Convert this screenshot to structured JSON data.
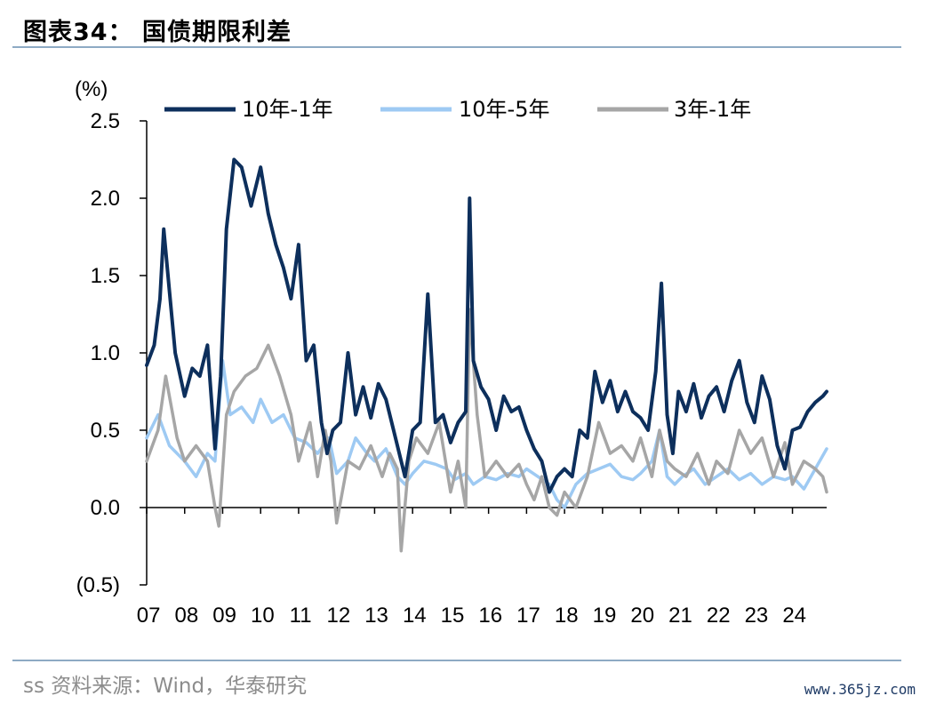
{
  "header": {
    "title": "图表34：  国债期限利差"
  },
  "footer": {
    "source": "ss 资料来源：Wind，华泰研究",
    "watermark": "www.365jz.com"
  },
  "chart_data": {
    "type": "line",
    "title": "",
    "ylabel": "(%)",
    "xlabel": "",
    "ylim": [
      -0.5,
      2.5
    ],
    "xlim": [
      2007.0,
      2024.9
    ],
    "y_ticks": [
      2.5,
      2.0,
      1.5,
      1.0,
      0.5,
      0.0,
      -0.5
    ],
    "y_tick_labels": [
      "2.5",
      "2.0",
      "1.5",
      "1.0",
      "0.5",
      "0.0",
      "(0.5)"
    ],
    "x_tick_labels": [
      "07",
      "08",
      "09",
      "10",
      "11",
      "12",
      "13",
      "14",
      "15",
      "16",
      "17",
      "18",
      "19",
      "20",
      "21",
      "22",
      "23",
      "24"
    ],
    "legend_position": "top",
    "grid": false,
    "series": [
      {
        "name": "10年-1年",
        "color": "#0d2f5c",
        "x": [
          2007.0,
          2007.2,
          2007.35,
          2007.45,
          2007.6,
          2007.75,
          2008.0,
          2008.2,
          2008.4,
          2008.6,
          2008.8,
          2008.95,
          2009.1,
          2009.3,
          2009.5,
          2009.75,
          2010.0,
          2010.2,
          2010.4,
          2010.6,
          2010.8,
          2011.0,
          2011.2,
          2011.4,
          2011.6,
          2011.75,
          2011.9,
          2012.1,
          2012.3,
          2012.5,
          2012.7,
          2012.9,
          2013.1,
          2013.3,
          2013.5,
          2013.65,
          2013.8,
          2014.0,
          2014.2,
          2014.4,
          2014.6,
          2014.8,
          2015.0,
          2015.2,
          2015.4,
          2015.5,
          2015.6,
          2015.8,
          2016.0,
          2016.2,
          2016.4,
          2016.6,
          2016.8,
          2017.0,
          2017.2,
          2017.4,
          2017.6,
          2017.8,
          2018.0,
          2018.2,
          2018.4,
          2018.6,
          2018.8,
          2019.0,
          2019.2,
          2019.4,
          2019.6,
          2019.8,
          2020.0,
          2020.2,
          2020.4,
          2020.55,
          2020.7,
          2020.85,
          2021.0,
          2021.2,
          2021.4,
          2021.6,
          2021.8,
          2022.0,
          2022.2,
          2022.4,
          2022.6,
          2022.8,
          2023.0,
          2023.2,
          2023.4,
          2023.6,
          2023.8,
          2024.0,
          2024.2,
          2024.4,
          2024.6,
          2024.8,
          2024.9
        ],
        "values": [
          0.92,
          1.05,
          1.35,
          1.8,
          1.4,
          1.0,
          0.72,
          0.9,
          0.85,
          1.05,
          0.38,
          0.85,
          1.8,
          2.25,
          2.2,
          1.95,
          2.2,
          1.9,
          1.7,
          1.55,
          1.35,
          1.7,
          0.95,
          1.05,
          0.55,
          0.35,
          0.5,
          0.55,
          1.0,
          0.6,
          0.78,
          0.58,
          0.8,
          0.7,
          0.5,
          0.35,
          0.2,
          0.5,
          0.55,
          1.38,
          0.55,
          0.6,
          0.42,
          0.55,
          0.62,
          2.0,
          0.95,
          0.78,
          0.7,
          0.5,
          0.72,
          0.62,
          0.65,
          0.5,
          0.38,
          0.3,
          0.1,
          0.2,
          0.25,
          0.2,
          0.5,
          0.45,
          0.88,
          0.68,
          0.82,
          0.62,
          0.75,
          0.62,
          0.58,
          0.5,
          0.88,
          1.45,
          0.6,
          0.35,
          0.75,
          0.62,
          0.8,
          0.58,
          0.72,
          0.78,
          0.62,
          0.82,
          0.95,
          0.68,
          0.55,
          0.85,
          0.7,
          0.4,
          0.25,
          0.5,
          0.52,
          0.62,
          0.68,
          0.72,
          0.75
        ]
      },
      {
        "name": "10年-5年",
        "color": "#9ecaf3",
        "x": [
          2007.0,
          2007.3,
          2007.6,
          2008.0,
          2008.3,
          2008.6,
          2008.8,
          2009.0,
          2009.2,
          2009.5,
          2009.8,
          2010.0,
          2010.3,
          2010.6,
          2010.9,
          2011.2,
          2011.5,
          2011.8,
          2012.0,
          2012.3,
          2012.5,
          2012.8,
          2013.0,
          2013.3,
          2013.6,
          2013.8,
          2014.0,
          2014.3,
          2014.6,
          2014.9,
          2015.1,
          2015.4,
          2015.6,
          2015.9,
          2016.2,
          2016.5,
          2016.8,
          2017.0,
          2017.3,
          2017.6,
          2017.8,
          2018.0,
          2018.3,
          2018.6,
          2018.9,
          2019.2,
          2019.5,
          2019.8,
          2020.0,
          2020.3,
          2020.5,
          2020.7,
          2020.9,
          2021.1,
          2021.4,
          2021.7,
          2022.0,
          2022.3,
          2022.6,
          2022.9,
          2023.2,
          2023.5,
          2023.8,
          2024.0,
          2024.3,
          2024.6,
          2024.9
        ],
        "values": [
          0.45,
          0.6,
          0.4,
          0.3,
          0.2,
          0.35,
          0.3,
          0.95,
          0.6,
          0.65,
          0.55,
          0.7,
          0.55,
          0.6,
          0.45,
          0.42,
          0.35,
          0.45,
          0.22,
          0.3,
          0.45,
          0.35,
          0.3,
          0.38,
          0.2,
          0.15,
          0.22,
          0.3,
          0.28,
          0.25,
          0.18,
          0.22,
          0.15,
          0.2,
          0.18,
          0.22,
          0.2,
          0.25,
          0.2,
          0.15,
          0.05,
          0.0,
          0.15,
          0.22,
          0.25,
          0.28,
          0.2,
          0.18,
          0.22,
          0.3,
          0.5,
          0.2,
          0.15,
          0.2,
          0.25,
          0.15,
          0.2,
          0.25,
          0.18,
          0.22,
          0.15,
          0.2,
          0.18,
          0.2,
          0.12,
          0.25,
          0.38
        ]
      },
      {
        "name": "3年-1年",
        "color": "#a6a6a6",
        "x": [
          2007.0,
          2007.3,
          2007.5,
          2007.8,
          2008.0,
          2008.3,
          2008.6,
          2008.8,
          2008.9,
          2009.1,
          2009.3,
          2009.6,
          2009.9,
          2010.2,
          2010.5,
          2010.8,
          2011.0,
          2011.3,
          2011.5,
          2011.7,
          2011.85,
          2012.0,
          2012.3,
          2012.6,
          2012.9,
          2013.2,
          2013.4,
          2013.6,
          2013.7,
          2013.9,
          2014.1,
          2014.4,
          2014.7,
          2015.0,
          2015.2,
          2015.4,
          2015.5,
          2015.7,
          2015.9,
          2016.2,
          2016.5,
          2016.8,
          2017.0,
          2017.2,
          2017.4,
          2017.6,
          2017.8,
          2018.0,
          2018.3,
          2018.6,
          2018.9,
          2019.2,
          2019.5,
          2019.8,
          2020.0,
          2020.3,
          2020.5,
          2020.7,
          2020.9,
          2021.2,
          2021.5,
          2021.8,
          2022.0,
          2022.3,
          2022.6,
          2022.9,
          2023.2,
          2023.5,
          2023.8,
          2024.0,
          2024.3,
          2024.6,
          2024.8,
          2024.9
        ],
        "values": [
          0.3,
          0.5,
          0.85,
          0.45,
          0.3,
          0.4,
          0.3,
          0.0,
          -0.12,
          0.6,
          0.75,
          0.85,
          0.9,
          1.05,
          0.85,
          0.6,
          0.3,
          0.55,
          0.2,
          0.5,
          0.3,
          -0.1,
          0.3,
          0.25,
          0.4,
          0.2,
          0.35,
          0.25,
          -0.28,
          0.3,
          0.45,
          0.35,
          0.55,
          0.1,
          0.3,
          0.0,
          1.28,
          0.6,
          0.2,
          0.3,
          0.2,
          0.28,
          0.15,
          0.05,
          0.2,
          0.0,
          -0.05,
          0.1,
          0.0,
          0.2,
          0.55,
          0.35,
          0.4,
          0.3,
          0.45,
          0.2,
          0.5,
          0.3,
          0.25,
          0.2,
          0.35,
          0.15,
          0.3,
          0.22,
          0.5,
          0.35,
          0.45,
          0.2,
          0.42,
          0.15,
          0.3,
          0.25,
          0.2,
          0.1
        ]
      }
    ]
  }
}
